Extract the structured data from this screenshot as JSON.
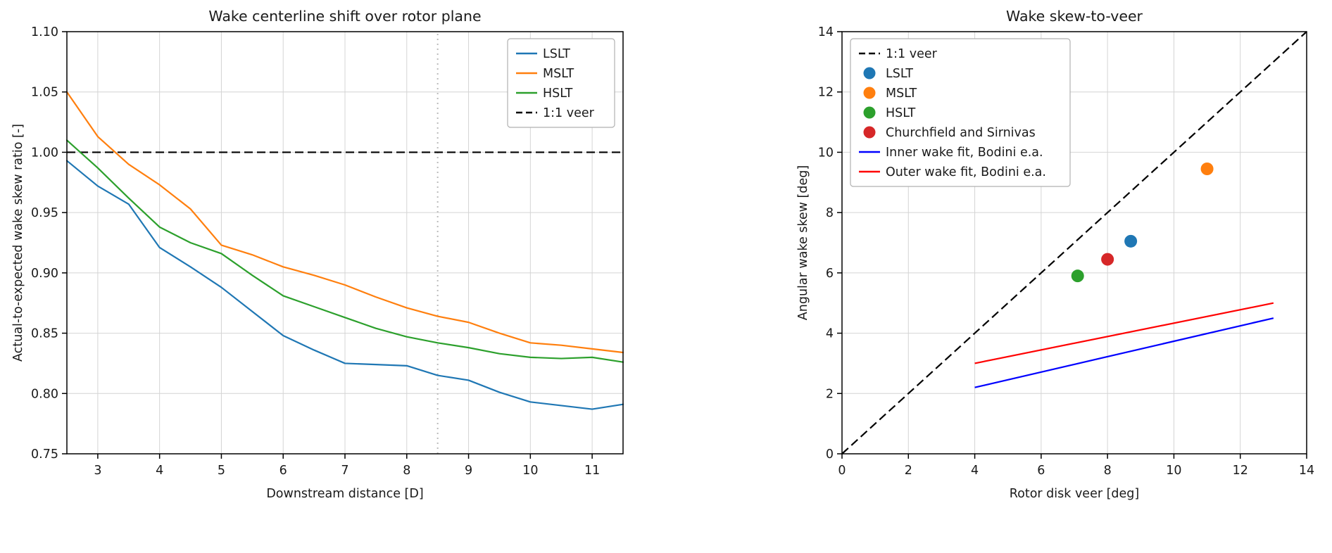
{
  "figure": {
    "background": "#ffffff"
  },
  "chart_data": [
    {
      "type": "line",
      "title": "Wake centerline shift over rotor plane",
      "xlabel": "Downstream distance [D]",
      "ylabel": "Actual-to-expected wake skew ratio [-]",
      "xlim": [
        2.5,
        11.5
      ],
      "ylim": [
        0.75,
        1.1
      ],
      "xticks": [
        3,
        4,
        5,
        6,
        7,
        8,
        9,
        10,
        11
      ],
      "xticklabels": [
        "3",
        "4",
        "5",
        "6",
        "7",
        "8",
        "9",
        "10",
        "11"
      ],
      "yticks": [
        0.75,
        0.8,
        0.85,
        0.9,
        0.95,
        1.0,
        1.05,
        1.1
      ],
      "yticklabels": [
        "0.75",
        "0.80",
        "0.85",
        "0.90",
        "0.95",
        "1.00",
        "1.05",
        "1.10"
      ],
      "grid": true,
      "x": [
        2.5,
        3.0,
        3.5,
        4.0,
        4.5,
        5.0,
        5.5,
        6.0,
        6.5,
        7.0,
        7.5,
        8.0,
        8.5,
        9.0,
        9.5,
        10.0,
        10.5,
        11.0,
        11.5
      ],
      "series": [
        {
          "name": "LSLT",
          "color": "#1f77b4",
          "values": [
            0.993,
            0.972,
            0.957,
            0.921,
            0.905,
            0.888,
            0.868,
            0.848,
            0.836,
            0.825,
            0.824,
            0.823,
            0.815,
            0.811,
            0.801,
            0.793,
            0.79,
            0.787,
            0.791
          ]
        },
        {
          "name": "MSLT",
          "color": "#ff7f0e",
          "values": [
            1.05,
            1.013,
            0.99,
            0.973,
            0.953,
            0.923,
            0.915,
            0.905,
            0.898,
            0.89,
            0.88,
            0.871,
            0.864,
            0.859,
            0.85,
            0.842,
            0.84,
            0.837,
            0.834
          ]
        },
        {
          "name": "HSLT",
          "color": "#2ca02c",
          "values": [
            1.01,
            0.987,
            0.962,
            0.938,
            0.925,
            0.916,
            0.898,
            0.881,
            0.872,
            0.863,
            0.854,
            0.847,
            0.842,
            0.838,
            0.833,
            0.83,
            0.829,
            0.83,
            0.826
          ]
        }
      ],
      "ref_lines": [
        {
          "name": "downstream-threshold-vline",
          "x": [
            8.5,
            8.5
          ],
          "y": [
            0.75,
            1.1
          ],
          "color": "#bbbbbb",
          "dash": "dotted",
          "width": 2
        },
        {
          "name": "one-to-one-veer-hline",
          "x": [
            2.5,
            11.5
          ],
          "y": [
            1.0,
            1.0
          ],
          "color": "#000000",
          "dash": "dashed",
          "width": 2.2
        }
      ],
      "legend": [
        {
          "label": "LSLT",
          "marker": "line",
          "color": "#1f77b4"
        },
        {
          "label": "MSLT",
          "marker": "line",
          "color": "#ff7f0e"
        },
        {
          "label": "HSLT",
          "marker": "line",
          "color": "#2ca02c"
        },
        {
          "label": "1:1 veer",
          "marker": "dash",
          "color": "#000000"
        }
      ],
      "legend_position": "upper right"
    },
    {
      "type": "scatter",
      "title": "Wake skew-to-veer",
      "xlabel": "Rotor disk veer [deg]",
      "ylabel": "Angular wake skew [deg]",
      "xlim": [
        0,
        14
      ],
      "ylim": [
        0,
        14
      ],
      "xticks": [
        0,
        2,
        4,
        6,
        8,
        10,
        12,
        14
      ],
      "xticklabels": [
        "0",
        "2",
        "4",
        "6",
        "8",
        "10",
        "12",
        "14"
      ],
      "yticks": [
        0,
        2,
        4,
        6,
        8,
        10,
        12,
        14
      ],
      "yticklabels": [
        "0",
        "2",
        "4",
        "6",
        "8",
        "10",
        "12",
        "14"
      ],
      "grid": true,
      "points": [
        {
          "name": "LSLT",
          "x": 8.7,
          "y": 7.05,
          "color": "#1f77b4"
        },
        {
          "name": "MSLT",
          "x": 11.0,
          "y": 9.45,
          "color": "#ff7f0e"
        },
        {
          "name": "HSLT",
          "x": 7.1,
          "y": 5.9,
          "color": "#2ca02c"
        },
        {
          "name": "Churchfield and Sirnivas",
          "x": 8.0,
          "y": 6.45,
          "color": "#d62728"
        }
      ],
      "ref_lines": [
        {
          "name": "one-to-one-veer-diagonal",
          "x": [
            0,
            14
          ],
          "y": [
            0,
            14
          ],
          "color": "#000000",
          "dash": "dashed",
          "width": 2.2
        },
        {
          "name": "inner-wake-fit-bodini",
          "x": [
            4,
            13
          ],
          "y": [
            2.2,
            4.5
          ],
          "color": "#0000ff",
          "dash": "none",
          "width": 2.2
        },
        {
          "name": "outer-wake-fit-bodini",
          "x": [
            4,
            13
          ],
          "y": [
            3.0,
            5.0
          ],
          "color": "#ff0000",
          "dash": "none",
          "width": 2.2
        }
      ],
      "legend": [
        {
          "label": "1:1 veer",
          "marker": "dash",
          "color": "#000000"
        },
        {
          "label": "LSLT",
          "marker": "dot",
          "color": "#1f77b4"
        },
        {
          "label": "MSLT",
          "marker": "dot",
          "color": "#ff7f0e"
        },
        {
          "label": "HSLT",
          "marker": "dot",
          "color": "#2ca02c"
        },
        {
          "label": "Churchfield and Sirnivas",
          "marker": "dot",
          "color": "#d62728"
        },
        {
          "label": "Inner wake fit, Bodini e.a.",
          "marker": "line",
          "color": "#0000ff"
        },
        {
          "label": "Outer wake fit, Bodini e.a.",
          "marker": "line",
          "color": "#ff0000"
        }
      ],
      "legend_position": "upper left"
    }
  ]
}
